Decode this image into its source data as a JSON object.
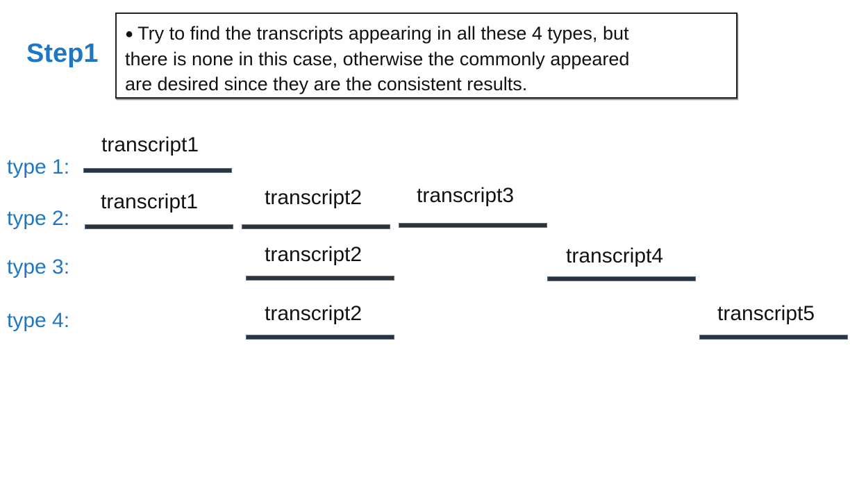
{
  "step": {
    "label": "Step1"
  },
  "note": {
    "bullet": "●",
    "lines": [
      "Try to find the transcripts appearing in all these 4 types, but",
      "there is none in this case, otherwise the commonly appeared",
      "are desired since they are the consistent results."
    ]
  },
  "types": [
    {
      "label": "type 1:",
      "transcripts": [
        "transcript1"
      ]
    },
    {
      "label": "type 2:",
      "transcripts": [
        "transcript1",
        "transcript2",
        "transcript3"
      ]
    },
    {
      "label": "type 3:",
      "transcripts": [
        "transcript2",
        "transcript4"
      ]
    },
    {
      "label": "type 4:",
      "transcripts": [
        "transcript2",
        "transcript5"
      ]
    }
  ],
  "colors": {
    "step_label": "#1f77c4",
    "type_label": "#1f77c4",
    "bar_fill": "#2b333d",
    "bar_border": "#5a6e85"
  }
}
